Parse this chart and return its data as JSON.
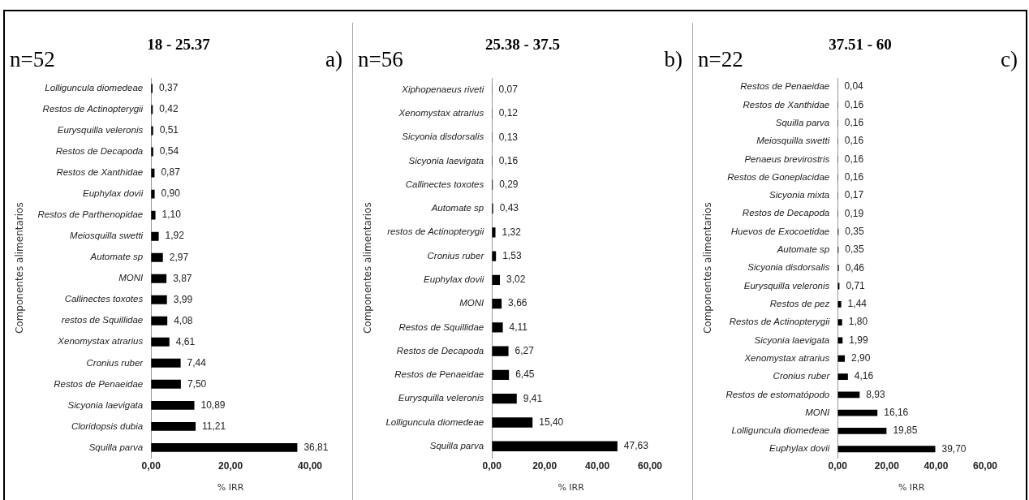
{
  "chart_data": [
    {
      "type": "bar",
      "orientation": "horizontal",
      "title": "18 - 25.37",
      "annotations": [
        "n=52",
        "a)"
      ],
      "xlabel": "% IRR",
      "ylabel": "Componentes alimentarios",
      "color": "#000000",
      "grid": false,
      "categories": [
        "Lolliguncula diomedeae",
        "Restos de Actinopterygii",
        "Eurysquilla veleronis",
        "Restos de Decapoda",
        "Restos de Xanthidae",
        "Euphylax dovii",
        "Restos de Parthenopidae",
        "Meiosquilla swetti",
        "Automate sp",
        "MONI",
        "Callinectes toxotes",
        "restos de Squillidae",
        "Xenomystax atrarius",
        "Cronius ruber",
        "Restos de Penaeidae",
        "Sicyonia laevigata",
        "Cloridopsis dubia",
        "Squilla parva"
      ],
      "values": [
        0.37,
        0.42,
        0.51,
        0.54,
        0.87,
        0.9,
        1.1,
        1.92,
        2.97,
        3.87,
        3.99,
        4.08,
        4.61,
        7.44,
        7.5,
        10.89,
        11.21,
        36.81
      ],
      "value_labels": [
        "0,37",
        "0,42",
        "0,51",
        "0,54",
        "0,87",
        "0,90",
        "1,10",
        "1,92",
        "2,97",
        "3,87",
        "3,99",
        "4,08",
        "4,61",
        "7,44",
        "7,50",
        "10,89",
        "11,21",
        "36,81"
      ],
      "xlim": [
        0,
        40
      ],
      "xticks": [
        {
          "value": 0,
          "label": "0,00"
        },
        {
          "value": 20,
          "label": "20,00"
        },
        {
          "value": 40,
          "label": "40,00"
        }
      ]
    },
    {
      "type": "bar",
      "orientation": "horizontal",
      "title": "25.38 - 37.5",
      "annotations": [
        "n=56",
        "b)"
      ],
      "xlabel": "% IRR",
      "ylabel": "Componentes alimentarios",
      "color": "#000000",
      "grid": false,
      "categories": [
        "Xiphopenaeus riveti",
        "Xenomystax atrarius",
        "Sicyonia disdorsalis",
        "Sicyonia laevigata",
        "Callinectes toxotes",
        "Automate sp",
        "restos de Actinopterygii",
        "Cronius ruber",
        "Euphylax dovii",
        "MONI",
        "Restos de Squillidae",
        "Restos de Decapoda",
        "Restos de Penaeidae",
        "Eurysquilla veleronis",
        "Lolliguncula diomedeae",
        "Squilla parva"
      ],
      "values": [
        0.07,
        0.12,
        0.13,
        0.16,
        0.29,
        0.43,
        1.32,
        1.53,
        3.02,
        3.66,
        4.11,
        6.27,
        6.45,
        9.41,
        15.4,
        47.63
      ],
      "value_labels": [
        "0,07",
        "0,12",
        "0,13",
        "0,16",
        "0,29",
        "0,43",
        "1,32",
        "1,53",
        "3,02",
        "3,66",
        "4,11",
        "6,27",
        "6,45",
        "9,41",
        "15,40",
        "47,63"
      ],
      "xlim": [
        0,
        60
      ],
      "xticks": [
        {
          "value": 0,
          "label": "0,00"
        },
        {
          "value": 20,
          "label": "20,00"
        },
        {
          "value": 40,
          "label": "40,00"
        },
        {
          "value": 60,
          "label": "60,00"
        }
      ]
    },
    {
      "type": "bar",
      "orientation": "horizontal",
      "title": "37.51 - 60",
      "annotations": [
        "n=22",
        "c)"
      ],
      "xlabel": "% IRR",
      "ylabel": "Componentes alimentarios",
      "color": "#000000",
      "grid": false,
      "categories": [
        "Restos de Penaeidae",
        "Restos de Xanthidae",
        "Squilla parva",
        "Meiosquilla swetti",
        "Penaeus brevirostris",
        "Restos de Goneplacidae",
        "Sicyonia mixta",
        "Restos de Decapoda",
        "Huevos de Exocoetidae",
        "Automate sp",
        "Sicyonia disdorsalis",
        "Eurysquilla veleronis",
        "Restos de pez",
        "Restos de Actinopterygii",
        "Sicyonia laevigata",
        "Xenomystax atrarius",
        "Cronius ruber",
        "Restos de estomatópodo",
        "MONI",
        "Lolliguncula diomedeae",
        "Euphylax dovii"
      ],
      "values": [
        0.04,
        0.16,
        0.16,
        0.16,
        0.16,
        0.16,
        0.17,
        0.19,
        0.35,
        0.35,
        0.46,
        0.71,
        1.44,
        1.8,
        1.99,
        2.9,
        4.16,
        8.93,
        16.16,
        19.85,
        39.7
      ],
      "value_labels": [
        "0,04",
        "0,16",
        "0,16",
        "0,16",
        "0,16",
        "0,16",
        "0,17",
        "0,19",
        "0,35",
        "0,35",
        "0,46",
        "0,71",
        "1,44",
        "1,80",
        "1,99",
        "2,90",
        "4,16",
        "8,93",
        "16,16",
        "19,85",
        "39,70"
      ],
      "xlim": [
        0,
        60
      ],
      "xticks": [
        {
          "value": 0,
          "label": "0,00"
        },
        {
          "value": 20,
          "label": "20,00"
        },
        {
          "value": 40,
          "label": "40,00"
        },
        {
          "value": 60,
          "label": "60,00"
        }
      ]
    }
  ]
}
